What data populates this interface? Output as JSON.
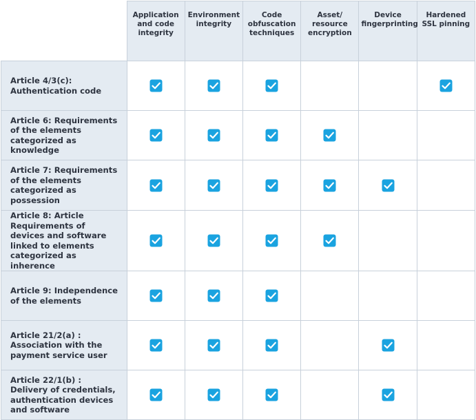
{
  "table": {
    "columns": [
      "Application and code integrity",
      "Environment integrity",
      "Code obfuscation techniques",
      "Asset/ resource encryption",
      "Device fingerprinting",
      "Hardened SSL pinning"
    ],
    "rows": [
      {
        "label": "Article 4/3(c): Authentication code",
        "checks": [
          true,
          true,
          true,
          false,
          false,
          true
        ]
      },
      {
        "label": "Article 6: Requirements of the elements categorized as knowledge",
        "checks": [
          true,
          true,
          true,
          true,
          false,
          false
        ]
      },
      {
        "label": "Article 7: Requirements of the elements categorized as possession",
        "checks": [
          true,
          true,
          true,
          true,
          true,
          false
        ]
      },
      {
        "label": "Article 8: Article Requirements of devices and software linked to elements categorized as inherence",
        "checks": [
          true,
          true,
          true,
          true,
          false,
          false
        ]
      },
      {
        "label": "Article 9: Independence of the elements",
        "checks": [
          true,
          true,
          true,
          false,
          false,
          false
        ]
      },
      {
        "label": "Article 21/2(a) : Association with the payment service user",
        "checks": [
          true,
          true,
          true,
          false,
          true,
          false
        ]
      },
      {
        "label": "Article 22/1(b) : Delivery of credentials, authentication devices and software",
        "checks": [
          true,
          true,
          true,
          false,
          true,
          false
        ]
      }
    ]
  }
}
